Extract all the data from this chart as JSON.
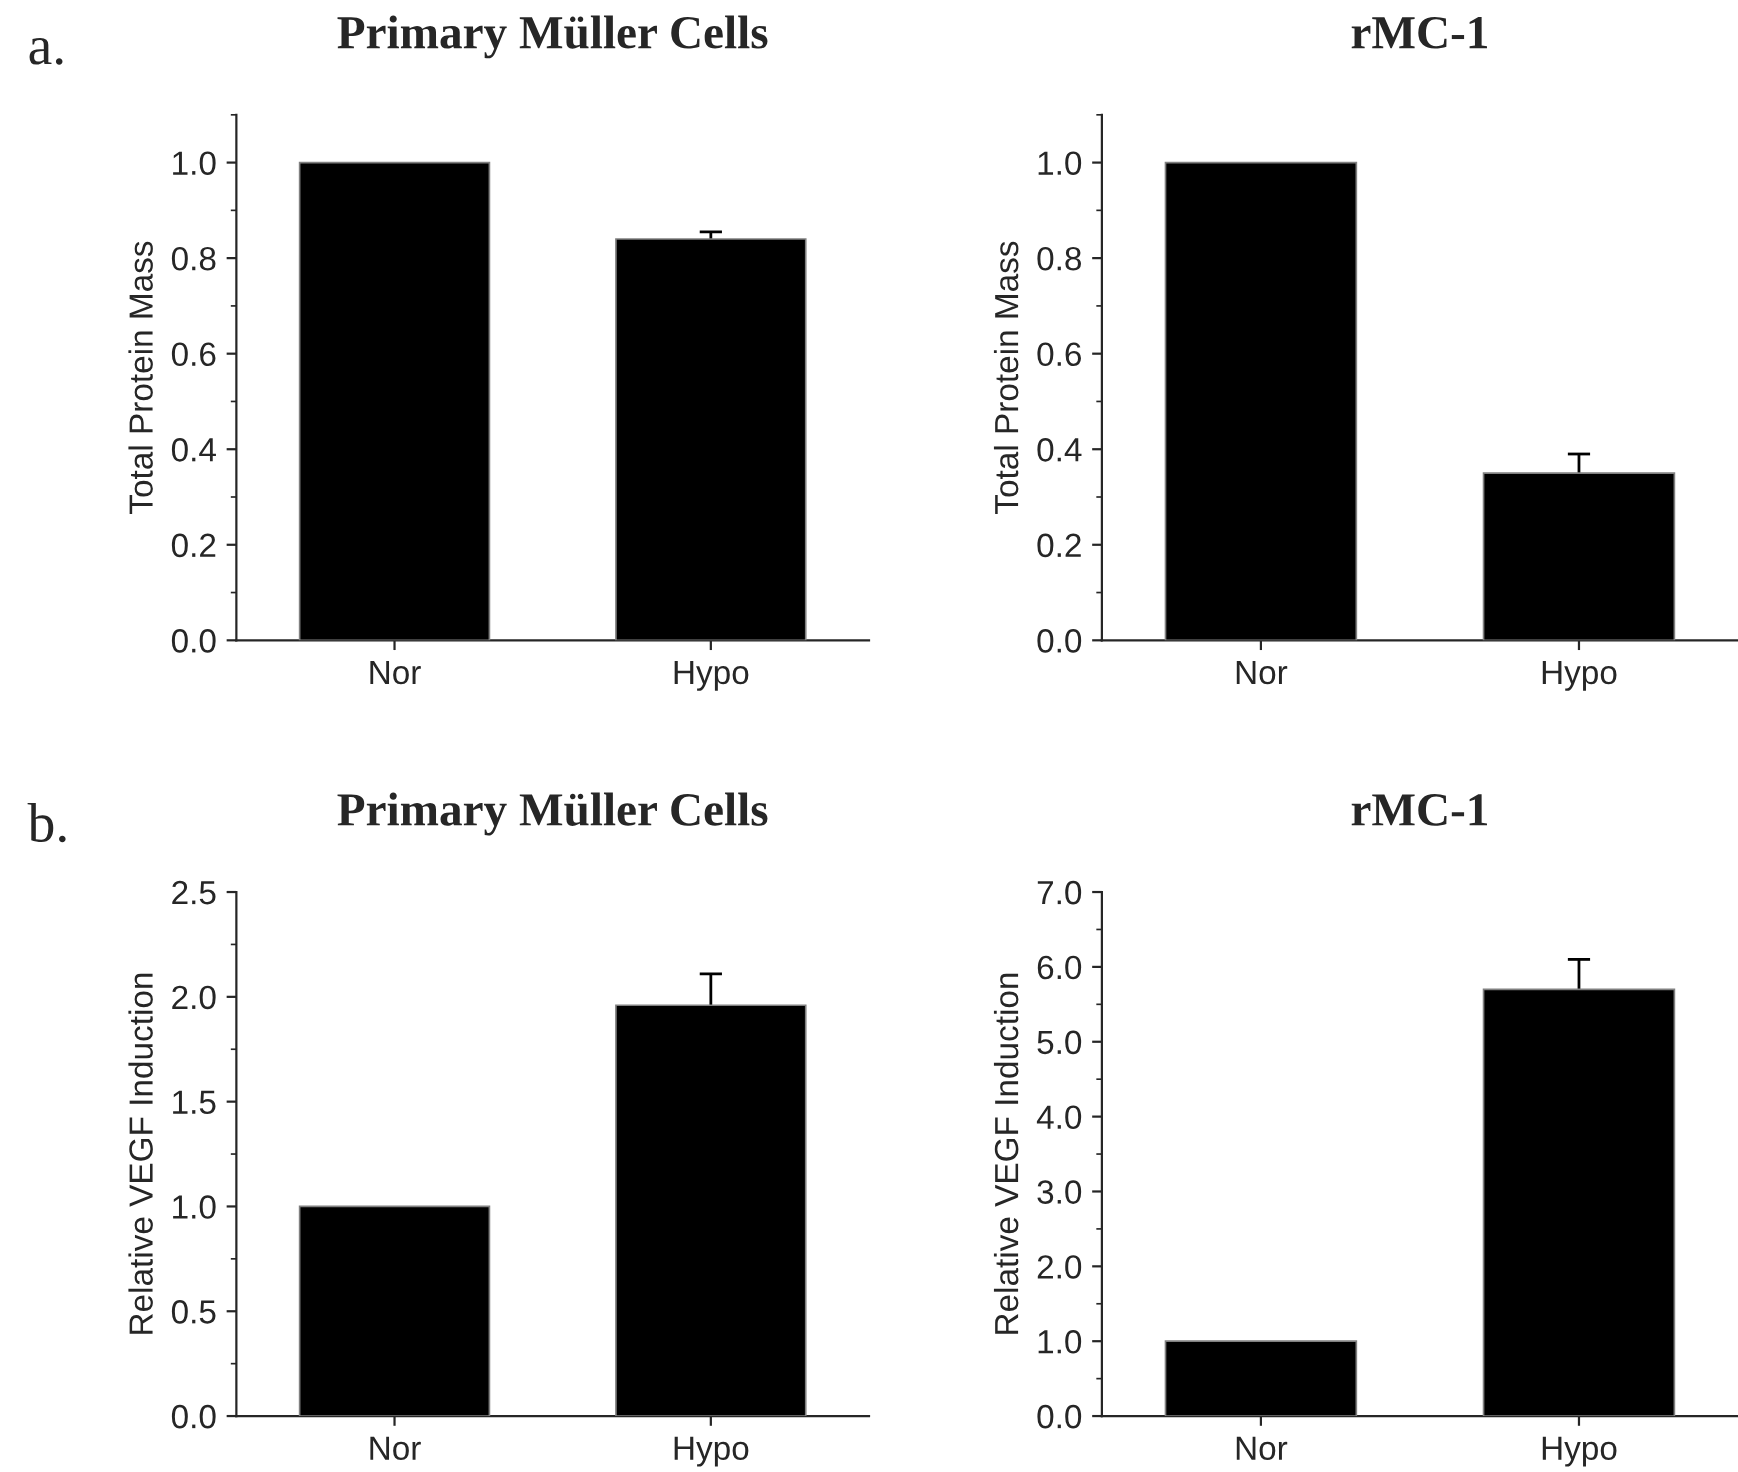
{
  "chart_data": [
    {
      "type": "bar",
      "title": "Primary Müller Cells",
      "ylabel": "Total Protein Mass",
      "annotations": [
        "a."
      ],
      "categories": [
        "Nor",
        "Hypo"
      ],
      "values": [
        1.0,
        0.84
      ],
      "errors": [
        null,
        0.015
      ],
      "color": "#000000",
      "ylim": [
        0,
        1.1
      ],
      "yticks": [
        {
          "value": 0,
          "label": "0.0"
        },
        0.2,
        0.4,
        0.6,
        0.8,
        {
          "value": 1,
          "label": "1.0"
        }
      ],
      "grid": false
    },
    {
      "type": "bar",
      "title": "rMC-1",
      "ylabel": "Total Protein Mass",
      "categories": [
        "Nor",
        "Hypo"
      ],
      "values": [
        1.0,
        0.35
      ],
      "errors": [
        null,
        0.04
      ],
      "color": "#000000",
      "ylim": [
        0,
        1.1
      ],
      "yticks": [
        {
          "value": 0,
          "label": "0.0"
        },
        0.2,
        0.4,
        0.6,
        0.8,
        {
          "value": 1,
          "label": "1.0"
        }
      ],
      "grid": false
    },
    {
      "type": "bar",
      "title": "Primary Müller Cells",
      "ylabel": "Relative VEGF Induction",
      "annotations": [
        "b."
      ],
      "categories": [
        "Nor",
        "Hypo"
      ],
      "values": [
        1.0,
        1.96
      ],
      "errors": [
        null,
        0.15
      ],
      "color": "#000000",
      "ylim": [
        0,
        2.5
      ],
      "yticks": [
        {
          "value": 0,
          "label": "0.0"
        },
        0.5,
        {
          "value": 1,
          "label": "1.0"
        },
        1.5,
        {
          "value": 2,
          "label": "2.0"
        },
        2.5
      ],
      "grid": false
    },
    {
      "type": "bar",
      "title": "rMC-1",
      "ylabel": "Relative VEGF Induction",
      "categories": [
        "Nor",
        "Hypo"
      ],
      "values": [
        1.0,
        5.7
      ],
      "errors": [
        null,
        0.4
      ],
      "color": "#000000",
      "ylim": [
        0,
        7
      ],
      "yticks": [
        {
          "value": 0,
          "label": "0.0"
        },
        {
          "value": 1,
          "label": "1.0"
        },
        {
          "value": 2,
          "label": "2.0"
        },
        {
          "value": 3,
          "label": "3.0"
        },
        {
          "value": 4,
          "label": "4.0"
        },
        {
          "value": 5,
          "label": "5.0"
        },
        {
          "value": 6,
          "label": "6.0"
        },
        {
          "value": 7,
          "label": "7.0"
        }
      ],
      "grid": false
    }
  ]
}
